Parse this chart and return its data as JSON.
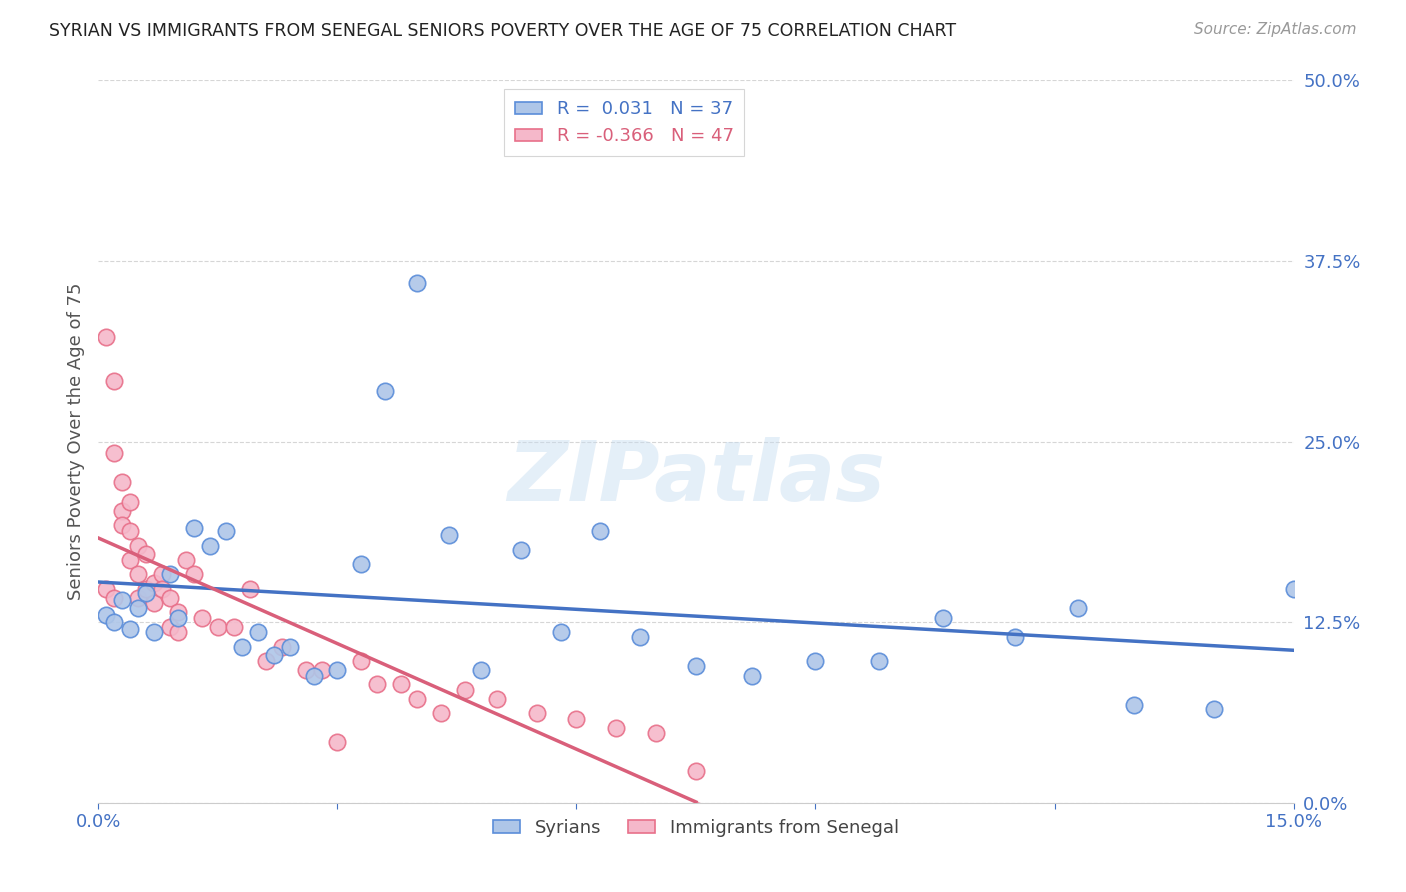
{
  "title": "SYRIAN VS IMMIGRANTS FROM SENEGAL SENIORS POVERTY OVER THE AGE OF 75 CORRELATION CHART",
  "source": "Source: ZipAtlas.com",
  "ylabel": "Seniors Poverty Over the Age of 75",
  "xlim": [
    0.0,
    0.15
  ],
  "ylim": [
    0.0,
    0.5
  ],
  "yticks": [
    0.0,
    0.125,
    0.25,
    0.375,
    0.5
  ],
  "ytick_labels": [
    "0.0%",
    "12.5%",
    "25.0%",
    "37.5%",
    "50.0%"
  ],
  "syrians_R": 0.031,
  "syrians_N": 37,
  "senegal_R": -0.366,
  "senegal_N": 47,
  "syrians_color": "#aec6e8",
  "senegal_color": "#f5b8ca",
  "syrians_edge_color": "#5b8dd9",
  "senegal_edge_color": "#e8708a",
  "syrians_line_color": "#4472c4",
  "senegal_line_color": "#d95f7a",
  "syrians_x": [
    0.001,
    0.002,
    0.003,
    0.004,
    0.005,
    0.006,
    0.007,
    0.009,
    0.01,
    0.012,
    0.014,
    0.016,
    0.018,
    0.02,
    0.022,
    0.024,
    0.027,
    0.03,
    0.033,
    0.036,
    0.04,
    0.044,
    0.048,
    0.053,
    0.058,
    0.063,
    0.068,
    0.075,
    0.082,
    0.09,
    0.098,
    0.106,
    0.115,
    0.123,
    0.13,
    0.14,
    0.15
  ],
  "syrians_y": [
    0.13,
    0.125,
    0.14,
    0.12,
    0.135,
    0.145,
    0.118,
    0.158,
    0.128,
    0.19,
    0.178,
    0.188,
    0.108,
    0.118,
    0.102,
    0.108,
    0.088,
    0.092,
    0.165,
    0.285,
    0.36,
    0.185,
    0.092,
    0.175,
    0.118,
    0.188,
    0.115,
    0.095,
    0.088,
    0.098,
    0.098,
    0.128,
    0.115,
    0.135,
    0.068,
    0.065,
    0.148
  ],
  "senegal_x": [
    0.001,
    0.001,
    0.002,
    0.002,
    0.002,
    0.003,
    0.003,
    0.003,
    0.004,
    0.004,
    0.004,
    0.005,
    0.005,
    0.005,
    0.006,
    0.006,
    0.007,
    0.007,
    0.008,
    0.008,
    0.009,
    0.009,
    0.01,
    0.01,
    0.011,
    0.012,
    0.013,
    0.015,
    0.017,
    0.019,
    0.021,
    0.023,
    0.026,
    0.028,
    0.03,
    0.033,
    0.035,
    0.038,
    0.04,
    0.043,
    0.046,
    0.05,
    0.055,
    0.06,
    0.065,
    0.07,
    0.075
  ],
  "senegal_y": [
    0.148,
    0.322,
    0.292,
    0.242,
    0.142,
    0.222,
    0.202,
    0.192,
    0.208,
    0.188,
    0.168,
    0.178,
    0.158,
    0.142,
    0.148,
    0.172,
    0.152,
    0.138,
    0.158,
    0.148,
    0.142,
    0.122,
    0.132,
    0.118,
    0.168,
    0.158,
    0.128,
    0.122,
    0.122,
    0.148,
    0.098,
    0.108,
    0.092,
    0.092,
    0.042,
    0.098,
    0.082,
    0.082,
    0.072,
    0.062,
    0.078,
    0.072,
    0.062,
    0.058,
    0.052,
    0.048,
    0.022
  ],
  "background_color": "#ffffff",
  "grid_color": "#cccccc",
  "title_color": "#222222",
  "axis_label_color": "#555555",
  "tick_color": "#4472c4",
  "watermark": "ZIPatlas"
}
